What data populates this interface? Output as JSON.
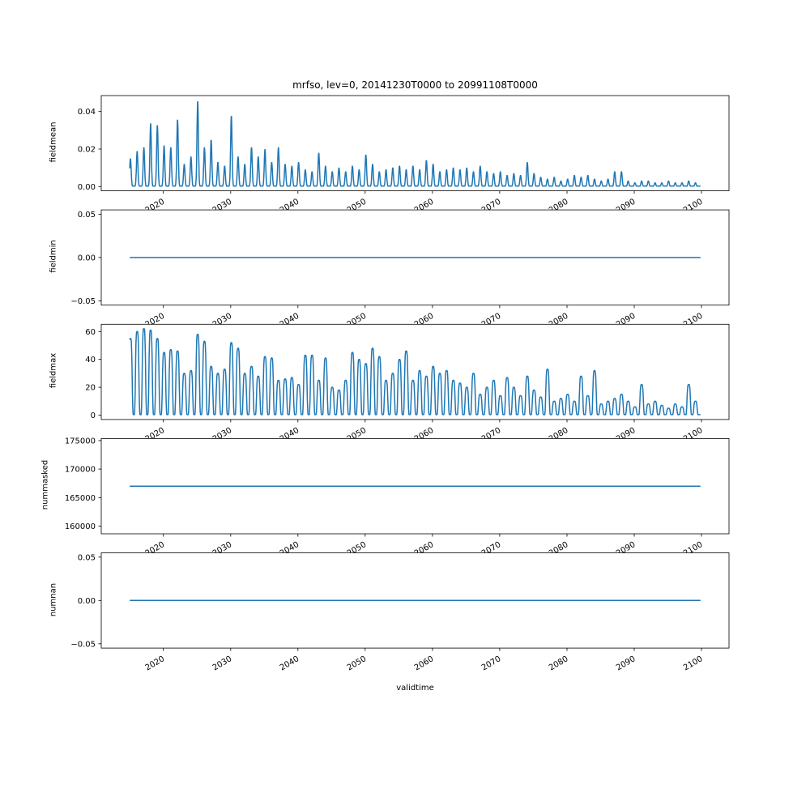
{
  "title": "mrfso, lev=0, 20141230T0000 to 20991108T0000",
  "line_color": "#1f77b4",
  "x": {
    "label": "validtime",
    "ticks": [
      2020,
      2030,
      2040,
      2050,
      2060,
      2070,
      2080,
      2090,
      2100
    ],
    "lim": [
      2010.76,
      2104.09
    ],
    "data_range": [
      2015.0,
      2099.85
    ]
  },
  "chart_data": [
    {
      "type": "line",
      "name": "fieldmean",
      "ylabel": "fieldmean",
      "ylim": [
        -0.0023,
        0.0485
      ],
      "yticks": [
        0.0,
        0.02,
        0.04
      ],
      "ytick_labels": [
        "0.00",
        "0.02",
        "0.04"
      ],
      "series_kind": "annual_spikes",
      "start_year": 2015,
      "peak_offset": 0.1,
      "spike_width": 0.15,
      "spike_power": 2,
      "baseline": 0.0002,
      "annual_peaks": [
        0.015,
        0.019,
        0.021,
        0.034,
        0.033,
        0.022,
        0.021,
        0.036,
        0.012,
        0.016,
        0.046,
        0.021,
        0.025,
        0.013,
        0.011,
        0.038,
        0.016,
        0.012,
        0.021,
        0.016,
        0.02,
        0.013,
        0.021,
        0.012,
        0.011,
        0.013,
        0.009,
        0.008,
        0.018,
        0.011,
        0.008,
        0.01,
        0.008,
        0.011,
        0.009,
        0.017,
        0.012,
        0.008,
        0.009,
        0.01,
        0.011,
        0.009,
        0.011,
        0.009,
        0.014,
        0.012,
        0.008,
        0.009,
        0.01,
        0.009,
        0.01,
        0.008,
        0.011,
        0.008,
        0.007,
        0.008,
        0.006,
        0.007,
        0.006,
        0.013,
        0.007,
        0.005,
        0.004,
        0.005,
        0.003,
        0.004,
        0.006,
        0.005,
        0.006,
        0.004,
        0.003,
        0.004,
        0.008,
        0.008,
        0.003,
        0.002,
        0.003,
        0.003,
        0.002,
        0.002,
        0.003,
        0.002,
        0.002,
        0.003,
        0.002
      ]
    },
    {
      "type": "line",
      "name": "fieldmin",
      "ylabel": "fieldmin",
      "ylim": [
        -0.055,
        0.055
      ],
      "yticks": [
        -0.05,
        0.0,
        0.05
      ],
      "ytick_labels": [
        "−0.05",
        "0.00",
        "0.05"
      ],
      "series_kind": "constant",
      "value": 0
    },
    {
      "type": "line",
      "name": "fieldmax",
      "ylabel": "fieldmax",
      "ylim": [
        -3.1,
        65.2
      ],
      "yticks": [
        0,
        20,
        40,
        60
      ],
      "ytick_labels": [
        "0",
        "20",
        "40",
        "60"
      ],
      "series_kind": "annual_spikes",
      "start_year": 2015,
      "peak_offset": 0.1,
      "spike_width": 0.28,
      "spike_power": 4,
      "baseline": 0.4,
      "annual_peaks": [
        55,
        60,
        62,
        61,
        55,
        45,
        47,
        46,
        30,
        32,
        58,
        53,
        35,
        30,
        33,
        52,
        48,
        30,
        35,
        28,
        42,
        41,
        25,
        26,
        27,
        22,
        43,
        43,
        25,
        41,
        20,
        18,
        25,
        45,
        40,
        37,
        48,
        42,
        25,
        30,
        40,
        46,
        25,
        32,
        28,
        35,
        30,
        32,
        25,
        23,
        20,
        30,
        15,
        20,
        25,
        14,
        27,
        20,
        14,
        28,
        18,
        13,
        33,
        10,
        12,
        15,
        10,
        28,
        14,
        32,
        8,
        10,
        12,
        15,
        10,
        6,
        22,
        8,
        10,
        7,
        5,
        8,
        6,
        22,
        10
      ]
    },
    {
      "type": "line",
      "name": "nummasked",
      "ylabel": "nummasked",
      "ylim": [
        158650,
        175350
      ],
      "yticks": [
        160000,
        165000,
        170000,
        175000
      ],
      "ytick_labels": [
        "160000",
        "165000",
        "170000",
        "175000"
      ],
      "series_kind": "constant",
      "value": 167000
    },
    {
      "type": "line",
      "name": "numnan",
      "ylabel": "numnan",
      "ylim": [
        -0.055,
        0.055
      ],
      "yticks": [
        -0.05,
        0.0,
        0.05
      ],
      "ytick_labels": [
        "−0.05",
        "0.00",
        "0.05"
      ],
      "series_kind": "constant",
      "value": 0
    }
  ]
}
